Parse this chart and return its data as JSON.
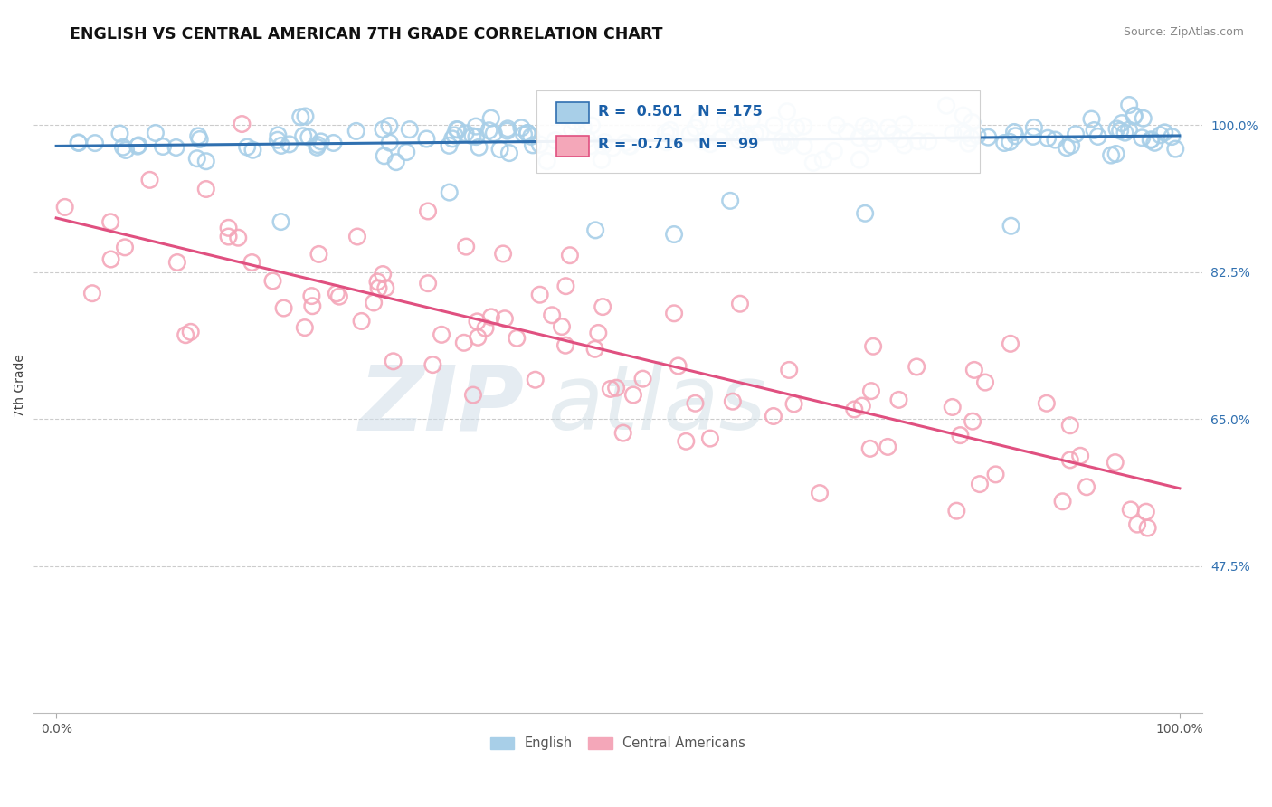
{
  "title": "ENGLISH VS CENTRAL AMERICAN 7TH GRADE CORRELATION CHART",
  "source": "Source: ZipAtlas.com",
  "ylabel": "7th Grade",
  "yticks": [
    0.475,
    0.65,
    0.825,
    1.0
  ],
  "ytick_labels": [
    "47.5%",
    "65.0%",
    "82.5%",
    "100.0%"
  ],
  "xlim": [
    -0.02,
    1.02
  ],
  "ylim": [
    0.3,
    1.08
  ],
  "english_R": 0.501,
  "english_N": 175,
  "central_R": -0.716,
  "central_N": 99,
  "english_color": "#a8cfe8",
  "central_color": "#f4a7b9",
  "english_line_color": "#3070b0",
  "central_line_color": "#e05080",
  "watermark_zip": "ZIP",
  "watermark_atlas": "atlas",
  "background_color": "#ffffff",
  "grid_color": "#cccccc",
  "eng_line_start_y": 0.975,
  "eng_line_end_y": 0.99,
  "cen_line_start_y": 0.875,
  "cen_line_end_y": 0.57
}
